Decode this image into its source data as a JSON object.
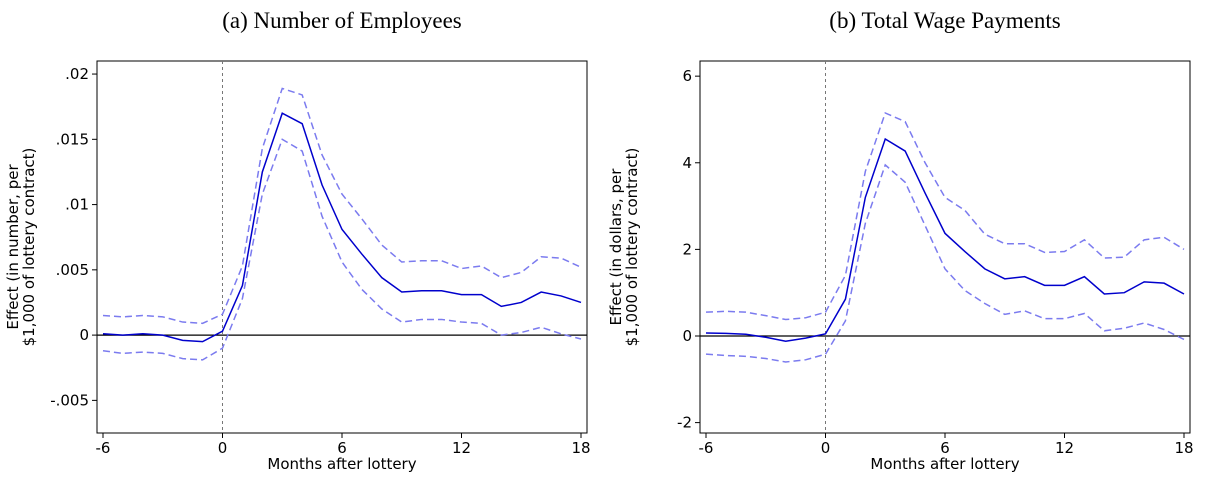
{
  "chart_data": [
    {
      "type": "line",
      "title": "(a) Number of Employees",
      "xlabel": "Months after lottery",
      "ylabel": [
        "Effect (in number, per",
        "$1,000 of lottery contract)"
      ],
      "x": [
        -6,
        -5,
        -4,
        -3,
        -2,
        -1,
        0,
        1,
        2,
        3,
        4,
        5,
        6,
        7,
        8,
        9,
        10,
        11,
        12,
        13,
        14,
        15,
        16,
        17,
        18
      ],
      "series": [
        {
          "color": "#0000cc",
          "style": "solid",
          "values": [
            0.0001,
            0.0,
            0.0001,
            0.0,
            -0.0004,
            -0.0005,
            0.0003,
            0.0038,
            0.0125,
            0.017,
            0.0162,
            0.0115,
            0.0081,
            0.0062,
            0.0044,
            0.0033,
            0.0034,
            0.0034,
            0.0031,
            0.0031,
            0.0022,
            0.0025,
            0.0033,
            0.003,
            0.0025
          ]
        },
        {
          "color": "#7b7bef",
          "style": "dashed",
          "values": [
            0.0015,
            0.0014,
            0.0015,
            0.0014,
            0.001,
            0.0009,
            0.0016,
            0.0053,
            0.0143,
            0.0189,
            0.0184,
            0.0138,
            0.0108,
            0.0089,
            0.0069,
            0.0056,
            0.0057,
            0.0057,
            0.0051,
            0.0053,
            0.0044,
            0.0048,
            0.006,
            0.0059,
            0.0052
          ]
        },
        {
          "color": "#7b7bef",
          "style": "dashed",
          "values": [
            -0.0012,
            -0.0014,
            -0.0013,
            -0.0014,
            -0.0018,
            -0.0019,
            -0.001,
            0.0028,
            0.0108,
            0.015,
            0.0141,
            0.0091,
            0.0056,
            0.0035,
            0.002,
            0.001,
            0.0012,
            0.0012,
            0.001,
            0.0009,
            0.0,
            0.0002,
            0.0006,
            0.0001,
            -0.0003
          ]
        }
      ],
      "xlim": [
        -6,
        18
      ],
      "xticks": [
        -6,
        0,
        6,
        12,
        18
      ],
      "ylim": [
        -0.0075,
        0.021
      ],
      "yticks": [
        {
          "value": -0.005,
          "label": "-.005"
        },
        0,
        {
          "value": 0.005,
          "label": ".005"
        },
        {
          "value": 0.01,
          "label": ".01"
        },
        {
          "value": 0.015,
          "label": ".015"
        },
        {
          "value": 0.02,
          "label": ".02"
        }
      ],
      "vline": 0,
      "hline": 0
    },
    {
      "type": "line",
      "title": "(b) Total Wage Payments",
      "xlabel": "Months after lottery",
      "ylabel": [
        "Effect (in dollars, per",
        "$1,000 of lottery contract)"
      ],
      "x": [
        -6,
        -5,
        -4,
        -3,
        -2,
        -1,
        0,
        1,
        2,
        3,
        4,
        5,
        6,
        7,
        8,
        9,
        10,
        11,
        12,
        13,
        14,
        15,
        16,
        17,
        18
      ],
      "series": [
        {
          "color": "#0000cc",
          "style": "solid",
          "values": [
            0.07,
            0.06,
            0.04,
            -0.03,
            -0.12,
            -0.05,
            0.05,
            0.85,
            3.2,
            4.55,
            4.27,
            3.3,
            2.37,
            1.95,
            1.55,
            1.32,
            1.37,
            1.17,
            1.17,
            1.37,
            0.97,
            1.0,
            1.25,
            1.22,
            0.97
          ]
        },
        {
          "color": "#7b7bef",
          "style": "dashed",
          "values": [
            0.55,
            0.57,
            0.55,
            0.47,
            0.38,
            0.42,
            0.55,
            1.4,
            3.8,
            5.15,
            4.95,
            4.0,
            3.2,
            2.9,
            2.35,
            2.13,
            2.13,
            1.93,
            1.95,
            2.22,
            1.8,
            1.82,
            2.22,
            2.28,
            2.0
          ]
        },
        {
          "color": "#7b7bef",
          "style": "dashed",
          "values": [
            -0.42,
            -0.45,
            -0.47,
            -0.52,
            -0.6,
            -0.55,
            -0.42,
            0.35,
            2.6,
            3.95,
            3.55,
            2.55,
            1.55,
            1.05,
            0.75,
            0.5,
            0.58,
            0.4,
            0.4,
            0.52,
            0.12,
            0.18,
            0.3,
            0.15,
            -0.08
          ]
        }
      ],
      "xlim": [
        -6,
        18
      ],
      "xticks": [
        -6,
        0,
        6,
        12,
        18
      ],
      "ylim": [
        -2.24,
        6.35
      ],
      "yticks": [
        -2,
        0,
        2,
        4,
        6
      ],
      "vline": 0,
      "hline": 0
    }
  ]
}
